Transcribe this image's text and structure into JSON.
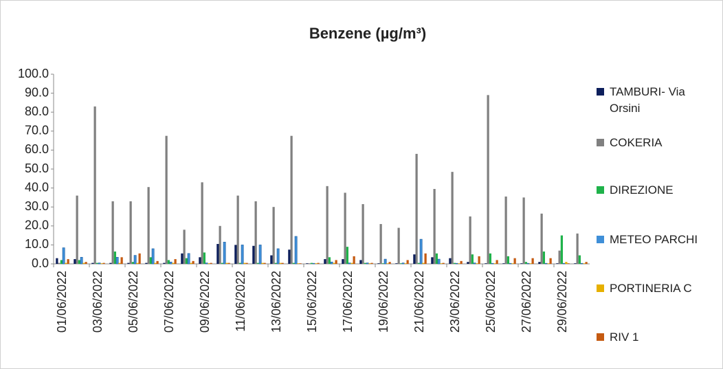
{
  "chart_data": {
    "type": "bar",
    "title": "Benzene (µg/m³)",
    "categories": [
      "01/06/2022",
      null,
      "03/06/2022",
      null,
      "05/06/2022",
      null,
      "07/06/2022",
      null,
      "09/06/2022",
      null,
      "11/06/2022",
      null,
      "13/06/2022",
      null,
      "15/06/2022",
      null,
      "17/06/2022",
      null,
      "19/06/2022",
      null,
      "21/06/2022",
      null,
      "23/06/2022",
      null,
      "25/06/2022",
      null,
      "27/06/2022",
      null,
      "29/06/2022",
      null
    ],
    "series": [
      {
        "name": "TAMBURI- Via Orsini",
        "color": "#0d1f5c",
        "values": [
          3,
          2.5,
          0.5,
          0.5,
          0.5,
          0.5,
          0.5,
          5.5,
          3.5,
          10.5,
          10,
          9.5,
          4.5,
          7.5,
          0.3,
          2.5,
          2.5,
          2,
          0.3,
          0.3,
          5,
          3.5,
          3,
          1,
          0.3,
          0.3,
          0.3,
          1,
          0.3,
          0.3
        ]
      },
      {
        "name": "COKERIA",
        "color": "#808080",
        "values": [
          0.5,
          36,
          83,
          33,
          33,
          40.5,
          67.5,
          18,
          43,
          20,
          36,
          33,
          30,
          67.5,
          0.3,
          41,
          37.5,
          31.5,
          21,
          19,
          58,
          39.5,
          48.5,
          25,
          89,
          35.5,
          35,
          26.5,
          7,
          16
        ]
      },
      {
        "name": "DIREZIONE",
        "color": "#1fb24a",
        "values": [
          2,
          2,
          0.5,
          6.5,
          1,
          3.5,
          2,
          3,
          6,
          0.5,
          0.5,
          0.5,
          0.5,
          0.5,
          0.5,
          3.5,
          9,
          0.5,
          0.3,
          0.3,
          0.5,
          5.5,
          0.5,
          5,
          5.5,
          4,
          1,
          6.5,
          15,
          4.5
        ]
      },
      {
        "name": "METEO PARCHI",
        "color": "#3f8fd8",
        "values": [
          8.5,
          3.5,
          0.5,
          3.5,
          4.5,
          8,
          1,
          5.5,
          0.5,
          11.5,
          10,
          10,
          8,
          14.5,
          0.3,
          1,
          0.5,
          0.5,
          2.5,
          0.5,
          13,
          2.5,
          0.3,
          0.5,
          0.3,
          0.3,
          0.3,
          0.3,
          0.3,
          0.3
        ]
      },
      {
        "name": "PORTINERIA C",
        "color": "#e6b000",
        "values": [
          0.5,
          0.5,
          0.3,
          0.5,
          0.5,
          0.5,
          0.5,
          0.5,
          0.3,
          0.5,
          0.5,
          0.5,
          0.5,
          0.3,
          0.3,
          0.5,
          0.5,
          0.3,
          0.3,
          0.3,
          0.5,
          0.3,
          0.3,
          0.3,
          0.3,
          0.3,
          0.3,
          0.3,
          1,
          0.3
        ]
      },
      {
        "name": "RIV 1",
        "color": "#c55a11",
        "values": [
          2.5,
          1,
          0.5,
          3.5,
          5.5,
          1.5,
          2.5,
          1.5,
          0.5,
          0.5,
          0.5,
          0.5,
          0.5,
          0.3,
          0.5,
          2,
          4,
          0.5,
          1,
          2,
          5.5,
          0.5,
          1.5,
          4,
          2,
          3,
          3,
          3,
          0.3,
          1
        ]
      }
    ],
    "ylim": [
      0,
      100
    ],
    "yticks": [
      {
        "value": 0,
        "label": "0.0"
      },
      {
        "value": 10,
        "label": "10.0"
      },
      {
        "value": 20,
        "label": "20.0"
      },
      {
        "value": 30,
        "label": "30.0"
      },
      {
        "value": 40,
        "label": "40.0"
      },
      {
        "value": 50,
        "label": "50.0"
      },
      {
        "value": 60,
        "label": "60.0"
      },
      {
        "value": 70,
        "label": "70.0"
      },
      {
        "value": 80,
        "label": "80.0"
      },
      {
        "value": 90,
        "label": "90.0"
      },
      {
        "value": 100,
        "label": "100.0"
      }
    ],
    "grid": false,
    "legend": "right"
  }
}
